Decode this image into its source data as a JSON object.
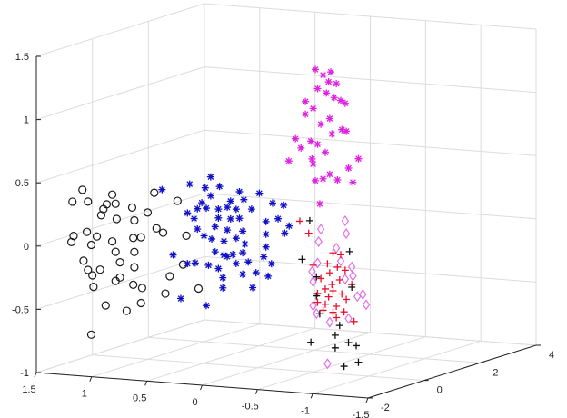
{
  "chart_data": {
    "type": "scatter3d",
    "title": "",
    "xlabel": "",
    "ylabel": "",
    "zlabel": "",
    "xlim": [
      -1.5,
      1.5
    ],
    "ylim": [
      -2,
      4
    ],
    "zlim": [
      -1,
      1.5
    ],
    "x_ticks": [
      "1.5",
      "1",
      "0.5",
      "0",
      "-0.5",
      "-1",
      "-1.5"
    ],
    "x_tick_values": [
      1.5,
      1,
      0.5,
      0,
      -0.5,
      -1,
      -1.5
    ],
    "y_ticks": [
      "-2",
      "0",
      "2",
      "4"
    ],
    "y_tick_values": [
      -2,
      0,
      2,
      4
    ],
    "z_ticks": [
      "-1",
      "-0.5",
      "0",
      "0.5",
      "1",
      "1.5"
    ],
    "z_tick_values": [
      -1,
      -0.5,
      0,
      0.5,
      1,
      1.5
    ],
    "grid": true,
    "legend": "none",
    "series": [
      {
        "marker": "circle",
        "color": "#1a1a1a",
        "points": [
          [
            1.59,
            0,
            0.3
          ],
          [
            1.68,
            0,
            0.2
          ],
          [
            1.54,
            0,
            0.21
          ],
          [
            1.32,
            0,
            0.28
          ],
          [
            1.37,
            0,
            0.2
          ],
          [
            1.29,
            0,
            0.21
          ],
          [
            1.4,
            0,
            0.16
          ],
          [
            1.14,
            0,
            0.19
          ],
          [
            1.42,
            0,
            0.11
          ],
          [
            1.28,
            0,
            0.09
          ],
          [
            1.12,
            0,
            0.09
          ],
          [
            1.0,
            0,
            0.16
          ],
          [
            0.94,
            0,
            0.32
          ],
          [
            0.73,
            0,
            0.27
          ],
          [
            0.92,
            0,
            0.04
          ],
          [
            0.86,
            0,
            0.01
          ],
          [
            0.65,
            0,
            0.0
          ],
          [
            1.67,
            0,
            -0.07
          ],
          [
            1.69,
            0,
            -0.12
          ],
          [
            1.55,
            0,
            -0.03
          ],
          [
            1.51,
            0,
            -0.13
          ],
          [
            1.32,
            0,
            -0.09
          ],
          [
            1.13,
            0,
            -0.05
          ],
          [
            1.29,
            0,
            -0.17
          ],
          [
            1.12,
            0,
            -0.16
          ],
          [
            1.58,
            0,
            -0.26
          ],
          [
            1.25,
            0,
            -0.25
          ],
          [
            1.54,
            0,
            -0.33
          ],
          [
            1.43,
            0,
            -0.32
          ],
          [
            1.12,
            0,
            -0.28
          ],
          [
            1.5,
            0,
            -0.37
          ],
          [
            1.25,
            0,
            -0.37
          ],
          [
            1.05,
            0,
            -0.44
          ],
          [
            0.8,
            0,
            -0.33
          ],
          [
            0.68,
            0,
            -0.23
          ],
          [
            0.84,
            0,
            -0.47
          ],
          [
            0.54,
            0,
            -0.41
          ],
          [
            1.49,
            0,
            -0.46
          ],
          [
            1.38,
            0,
            -0.6
          ],
          [
            1.19,
            0,
            -0.63
          ],
          [
            1.06,
            0,
            -0.56
          ],
          [
            1.51,
            0,
            -0.84
          ],
          [
            1.29,
            0,
            -0.4
          ],
          [
            1.13,
            0,
            -0.42
          ],
          [
            1.06,
            0,
            -0.04
          ],
          [
            1.46,
            0,
            -0.06
          ]
        ]
      },
      {
        "marker": "asterisk",
        "color": "#1010c8",
        "points": [
          [
            0.43,
            0,
            0.48
          ],
          [
            0.62,
            0,
            0.41
          ],
          [
            0.48,
            0,
            0.39
          ],
          [
            0.35,
            0,
            0.41
          ],
          [
            0.87,
            0,
            0.35
          ],
          [
            0.17,
            0,
            0.38
          ],
          [
            -0.01,
            0,
            0.38
          ],
          [
            0.43,
            0,
            0.33
          ],
          [
            0.51,
            0,
            0.27
          ],
          [
            0.25,
            0,
            0.3
          ],
          [
            0.13,
            0,
            0.32
          ],
          [
            -0.13,
            0,
            0.31
          ],
          [
            -0.23,
            0,
            0.3
          ],
          [
            0.64,
            0,
            0.18
          ],
          [
            0.55,
            0,
            0.22
          ],
          [
            0.47,
            0,
            0.23
          ],
          [
            0.36,
            0,
            0.23
          ],
          [
            0.28,
            0,
            0.25
          ],
          [
            0.2,
            0,
            0.24
          ],
          [
            0.06,
            0,
            0.25
          ],
          [
            0.58,
            0,
            0.14
          ],
          [
            0.36,
            0,
            0.16
          ],
          [
            0.25,
            0,
            0.16
          ],
          [
            0.17,
            0,
            0.17
          ],
          [
            -0.07,
            0,
            0.16
          ],
          [
            -0.18,
            0,
            0.19
          ],
          [
            -0.28,
            0,
            0.14
          ],
          [
            0.55,
            0,
            0.06
          ],
          [
            0.49,
            0,
            0.01
          ],
          [
            0.39,
            0,
            0.09
          ],
          [
            0.28,
            0,
            0.07
          ],
          [
            0.14,
            0,
            0.07
          ],
          [
            -0.07,
            0,
            0.06
          ],
          [
            -0.24,
            0,
            0.08
          ],
          [
            0.42,
            0,
            -0.01
          ],
          [
            0.31,
            0,
            -0.02
          ],
          [
            0.2,
            0,
            0.01
          ],
          [
            0.12,
            0,
            -0.03
          ],
          [
            -0.07,
            0,
            -0.04
          ],
          [
            0.77,
            0,
            -0.16
          ],
          [
            0.64,
            0,
            -0.22
          ],
          [
            0.57,
            0,
            -0.21
          ],
          [
            0.39,
            0,
            -0.11
          ],
          [
            0.31,
            0,
            -0.13
          ],
          [
            0.28,
            0,
            -0.14
          ],
          [
            0.2,
            0,
            -0.19
          ],
          [
            0.09,
            0,
            -0.17
          ],
          [
            -0.05,
            0,
            -0.12
          ],
          [
            -0.12,
            0,
            -0.17
          ],
          [
            0.45,
            0,
            -0.22
          ],
          [
            0.36,
            0,
            -0.24
          ],
          [
            0.32,
            0,
            -0.31
          ],
          [
            0.14,
            0,
            -0.27
          ],
          [
            0.02,
            0,
            -0.25
          ],
          [
            -0.09,
            0,
            -0.27
          ],
          [
            0.32,
            0,
            -0.39
          ],
          [
            0.05,
            0,
            -0.37
          ],
          [
            0.7,
            0,
            -0.5
          ],
          [
            0.47,
            0,
            -0.54
          ],
          [
            0.23,
            0,
            -0.12
          ],
          [
            0.14,
            0,
            -0.1
          ]
        ]
      },
      {
        "marker": "asterisk",
        "color": "#e020e0",
        "points": [
          [
            -0.01,
            2,
            1.22
          ],
          [
            -0.08,
            2,
            1.18
          ],
          [
            -0.15,
            2,
            1.21
          ],
          [
            -0.13,
            2,
            1.13
          ],
          [
            -0.2,
            2,
            1.12
          ],
          [
            -0.03,
            2,
            1.07
          ],
          [
            -0.11,
            2,
            1.04
          ],
          [
            -0.18,
            2,
            1.01
          ],
          [
            -0.24,
            2,
            0.99
          ],
          [
            -0.28,
            2,
            0.97
          ],
          [
            0.08,
            2,
            0.96
          ],
          [
            0.01,
            2,
            0.91
          ],
          [
            0.08,
            2,
            0.86
          ],
          [
            -0.06,
            2,
            0.79
          ],
          [
            -0.14,
            2,
            0.84
          ],
          [
            -0.16,
            2,
            0.72
          ],
          [
            -0.25,
            2,
            0.76
          ],
          [
            -0.29,
            2,
            0.75
          ],
          [
            0.17,
            2,
            0.66
          ],
          [
            0.12,
            2,
            0.59
          ],
          [
            0.03,
            2,
            0.65
          ],
          [
            -0.03,
            2,
            0.63
          ],
          [
            -0.1,
            2,
            0.57
          ],
          [
            0.02,
            2,
            0.51
          ],
          [
            0.01,
            2,
            0.47
          ],
          [
            0.23,
            2,
            0.48
          ],
          [
            -0.4,
            2,
            0.54
          ],
          [
            -0.31,
            2,
            0.46
          ],
          [
            -0.01,
            2,
            0.34
          ],
          [
            -0.08,
            2,
            0.36
          ],
          [
            -0.14,
            2,
            0.4
          ],
          [
            -0.21,
            2,
            0.36
          ],
          [
            -0.35,
            2,
            0.35
          ],
          [
            -0.05,
            2,
            0.16
          ]
        ]
      },
      {
        "marker": "diamond",
        "color": "#e070e8",
        "points": [
          [
            -1.04,
            -1,
            0.3
          ],
          [
            -0.82,
            -1,
            0.22
          ],
          [
            -1.05,
            -1,
            0.2
          ],
          [
            -0.8,
            -1,
            0.12
          ],
          [
            -0.96,
            -1,
            0.08
          ],
          [
            -0.79,
            -1,
            -0.05
          ],
          [
            -0.74,
            -1,
            -0.12
          ],
          [
            -1.1,
            -1,
            -0.06
          ],
          [
            -1.11,
            -1,
            -0.13
          ],
          [
            -0.75,
            -1,
            -0.2
          ],
          [
            -1.04,
            -1,
            -0.16
          ],
          [
            -1.15,
            -1,
            -0.29
          ],
          [
            -1.2,
            -1,
            -0.27
          ],
          [
            -1.23,
            -1,
            -0.35
          ],
          [
            -0.75,
            -1,
            -0.39
          ],
          [
            -0.9,
            -1,
            -0.51
          ],
          [
            -1.07,
            -1,
            -0.47
          ],
          [
            -0.88,
            -1,
            -0.84
          ],
          [
            -1.0,
            -1,
            -0.02
          ],
          [
            -0.78,
            -1,
            -0.45
          ]
        ]
      },
      {
        "marker": "plus",
        "color": "#e8102a",
        "points": [
          [
            -0.63,
            -1,
            0.27
          ],
          [
            -0.71,
            -1,
            0.18
          ],
          [
            -0.93,
            -1,
            0.04
          ],
          [
            -1.0,
            -1,
            0.03
          ],
          [
            -0.75,
            -1,
            -0.07
          ],
          [
            -0.88,
            -1,
            -0.05
          ],
          [
            -0.97,
            -1,
            -0.07
          ],
          [
            -0.9,
            -1,
            -0.12
          ],
          [
            -1.04,
            -1,
            -0.09
          ],
          [
            -0.82,
            -1,
            -0.17
          ],
          [
            -0.99,
            -1,
            -0.17
          ],
          [
            -0.86,
            -1,
            -0.25
          ],
          [
            -0.93,
            -1,
            -0.26
          ],
          [
            -1.01,
            -1,
            -0.28
          ],
          [
            -0.89,
            -1,
            -0.31
          ],
          [
            -0.79,
            -1,
            -0.36
          ],
          [
            -0.86,
            -1,
            -0.37
          ],
          [
            -0.96,
            -1,
            -0.38
          ],
          [
            -1.05,
            -1,
            -0.32
          ],
          [
            -0.84,
            -1,
            -0.42
          ],
          [
            -0.93,
            -1,
            -0.43
          ],
          [
            -1.03,
            -1,
            -0.42
          ],
          [
            -0.96,
            -1,
            -0.47
          ],
          [
            -1.12,
            -1,
            -0.49
          ],
          [
            -0.79,
            -1,
            -0.29
          ],
          [
            -1.1,
            -1,
            -0.2
          ],
          [
            -0.92,
            -1,
            -0.21
          ]
        ]
      },
      {
        "marker": "plus",
        "color": "#111111",
        "points": [
          [
            -0.72,
            -1,
            0.28
          ],
          [
            -1.08,
            -1,
            0.06
          ],
          [
            -0.65,
            -1,
            -0.03
          ],
          [
            -0.78,
            -1,
            -0.16
          ],
          [
            -1.1,
            -1,
            -0.22
          ],
          [
            -0.78,
            -1,
            -0.31
          ],
          [
            -0.81,
            -1,
            -0.45
          ],
          [
            -0.99,
            -1,
            -0.53
          ],
          [
            -0.95,
            -1,
            -0.61
          ],
          [
            -0.73,
            -1,
            -0.68
          ],
          [
            -0.95,
            -1,
            -0.71
          ],
          [
            -1.07,
            -1,
            -0.66
          ],
          [
            -1.14,
            -1,
            -0.68
          ],
          [
            -1.03,
            -1,
            -0.85
          ],
          [
            -1.16,
            -1,
            -0.81
          ]
        ]
      }
    ]
  }
}
